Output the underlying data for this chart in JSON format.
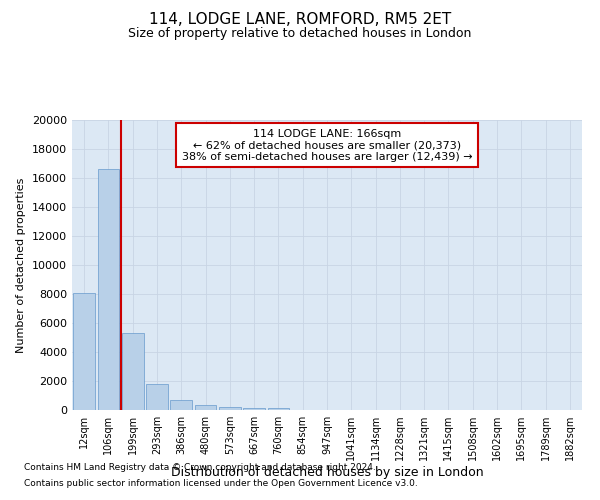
{
  "title": "114, LODGE LANE, ROMFORD, RM5 2ET",
  "subtitle": "Size of property relative to detached houses in London",
  "xlabel": "Distribution of detached houses by size in London",
  "ylabel": "Number of detached properties",
  "footnote1": "Contains HM Land Registry data © Crown copyright and database right 2024.",
  "footnote2": "Contains public sector information licensed under the Open Government Licence v3.0.",
  "annotation_line1": "114 LODGE LANE: 166sqm",
  "annotation_line2": "← 62% of detached houses are smaller (20,373)",
  "annotation_line3": "38% of semi-detached houses are larger (12,439) →",
  "bar_categories": [
    "12sqm",
    "106sqm",
    "199sqm",
    "293sqm",
    "386sqm",
    "480sqm",
    "573sqm",
    "667sqm",
    "760sqm",
    "854sqm",
    "947sqm",
    "1041sqm",
    "1134sqm",
    "1228sqm",
    "1321sqm",
    "1415sqm",
    "1508sqm",
    "1602sqm",
    "1695sqm",
    "1789sqm",
    "1882sqm"
  ],
  "bar_values": [
    8100,
    16600,
    5300,
    1800,
    700,
    320,
    180,
    140,
    120,
    0,
    0,
    0,
    0,
    0,
    0,
    0,
    0,
    0,
    0,
    0,
    0
  ],
  "bar_color": "#b8d0e8",
  "bar_edge_color": "#6699cc",
  "vline_x": 1.5,
  "ylim": [
    0,
    20000
  ],
  "yticks": [
    0,
    2000,
    4000,
    6000,
    8000,
    10000,
    12000,
    14000,
    16000,
    18000,
    20000
  ],
  "grid_color": "#c8d4e4",
  "plot_bg_color": "#dce8f4",
  "annotation_box_facecolor": "#ffffff",
  "annotation_box_edgecolor": "#cc0000",
  "vline_color": "#cc0000"
}
